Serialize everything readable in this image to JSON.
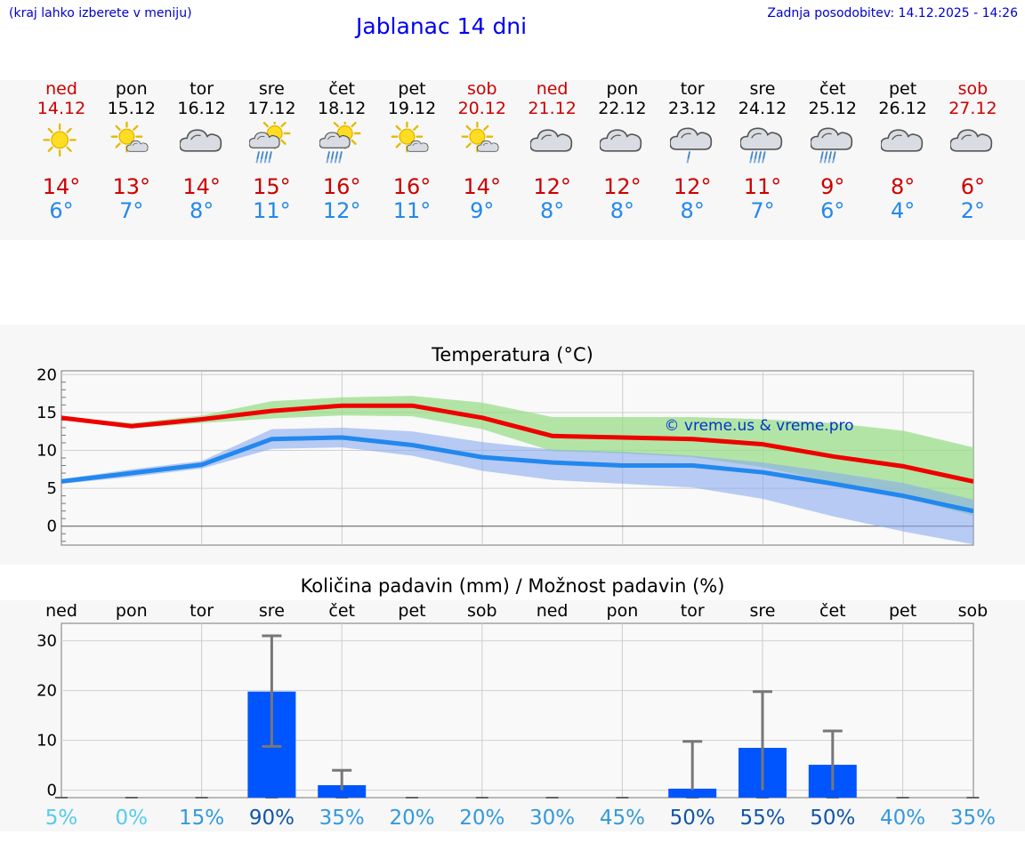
{
  "header": {
    "hint": "(kraj lahko izberete v meniju)",
    "title": "Jablanac 14 dni",
    "updated": "Zadnja posodobitev: 14.12.2025 - 14:26"
  },
  "colors": {
    "max_line": "#ee0000",
    "min_line": "#2288ee",
    "max_band": "#99dd88",
    "min_band": "#88aaee",
    "bar": "#0055ff",
    "weekend_text": "#cc0000",
    "min_text": "#2288ee"
  },
  "days": [
    {
      "name": "ned",
      "date": "14.12",
      "weekend": true,
      "icon": "sun-icon",
      "max": "14°",
      "min": "6°"
    },
    {
      "name": "pon",
      "date": "15.12",
      "weekend": false,
      "icon": "sun-cloud-icon",
      "max": "13°",
      "min": "7°"
    },
    {
      "name": "tor",
      "date": "16.12",
      "weekend": false,
      "icon": "cloud-icon",
      "max": "14°",
      "min": "8°"
    },
    {
      "name": "sre",
      "date": "17.12",
      "weekend": false,
      "icon": "sun-cloud-rain-icon",
      "max": "15°",
      "min": "11°"
    },
    {
      "name": "čet",
      "date": "18.12",
      "weekend": false,
      "icon": "sun-cloud-rain-icon",
      "max": "16°",
      "min": "12°"
    },
    {
      "name": "pet",
      "date": "19.12",
      "weekend": false,
      "icon": "sun-cloud-icon",
      "max": "16°",
      "min": "11°"
    },
    {
      "name": "sob",
      "date": "20.12",
      "weekend": true,
      "icon": "sun-cloud-icon",
      "max": "14°",
      "min": "9°"
    },
    {
      "name": "ned",
      "date": "21.12",
      "weekend": true,
      "icon": "cloud-icon",
      "max": "12°",
      "min": "8°"
    },
    {
      "name": "pon",
      "date": "22.12",
      "weekend": false,
      "icon": "cloud-icon",
      "max": "12°",
      "min": "8°"
    },
    {
      "name": "tor",
      "date": "23.12",
      "weekend": false,
      "icon": "cloud-light-rain-icon",
      "max": "12°",
      "min": "8°"
    },
    {
      "name": "sre",
      "date": "24.12",
      "weekend": false,
      "icon": "cloud-rain-icon",
      "max": "11°",
      "min": "7°"
    },
    {
      "name": "čet",
      "date": "25.12",
      "weekend": false,
      "icon": "cloud-rain-icon",
      "max": "9°",
      "min": "6°"
    },
    {
      "name": "pet",
      "date": "26.12",
      "weekend": false,
      "icon": "cloud-icon",
      "max": "8°",
      "min": "4°"
    },
    {
      "name": "sob",
      "date": "27.12",
      "weekend": true,
      "icon": "cloud-icon",
      "max": "6°",
      "min": "2°"
    }
  ],
  "chart_data": [
    {
      "type": "line",
      "title": "Temperatura (°C)",
      "watermark": "© vreme.us & vreme.pro",
      "ylim": [
        -2.5,
        20.5
      ],
      "yticks": [
        0,
        5,
        10,
        15,
        20
      ],
      "x": [
        "14.12",
        "15.12",
        "16.12",
        "17.12",
        "18.12",
        "19.12",
        "20.12",
        "21.12",
        "22.12",
        "23.12",
        "24.12",
        "25.12",
        "26.12",
        "27.12"
      ],
      "series": [
        {
          "name": "max",
          "values": [
            14.3,
            13.2,
            14.1,
            15.2,
            15.9,
            15.9,
            14.3,
            11.9,
            11.7,
            11.5,
            10.8,
            9.2,
            7.9,
            5.9
          ]
        },
        {
          "name": "min",
          "values": [
            5.9,
            7.0,
            8.1,
            11.5,
            11.7,
            10.7,
            9.1,
            8.4,
            8.0,
            8.0,
            7.1,
            5.6,
            4.0,
            2.0
          ]
        }
      ],
      "bands": [
        {
          "name": "max_range",
          "upper": [
            14.5,
            13.6,
            14.6,
            16.5,
            17.0,
            17.2,
            16.3,
            14.4,
            14.4,
            14.4,
            14.1,
            13.6,
            12.6,
            10.4
          ],
          "lower": [
            14.1,
            12.9,
            13.6,
            14.2,
            14.6,
            14.5,
            12.8,
            9.9,
            9.6,
            9.1,
            7.8,
            5.8,
            3.8,
            1.4
          ]
        },
        {
          "name": "min_range",
          "upper": [
            6.2,
            7.5,
            8.6,
            12.8,
            13.0,
            12.5,
            11.1,
            10.1,
            9.8,
            9.3,
            8.4,
            7.1,
            5.7,
            3.5
          ],
          "lower": [
            5.6,
            6.5,
            7.6,
            10.2,
            10.4,
            9.3,
            7.3,
            6.1,
            5.6,
            5.1,
            3.6,
            1.3,
            -0.7,
            -2.4
          ]
        }
      ]
    },
    {
      "type": "bar",
      "title": "Količina padavin (mm) / Možnost padavin (%)",
      "ylim": [
        -1.5,
        33.5
      ],
      "yticks": [
        0,
        10,
        20,
        30
      ],
      "categories": [
        "ned",
        "pon",
        "tor",
        "sre",
        "čet",
        "pet",
        "sob",
        "ned",
        "pon",
        "tor",
        "sre",
        "čet",
        "pet",
        "sob"
      ],
      "values": [
        0,
        0,
        0,
        19.8,
        1.0,
        0,
        0,
        0,
        0,
        0.3,
        8.5,
        5.1,
        0,
        0
      ],
      "error_high": [
        0,
        0,
        0,
        31.0,
        4.0,
        0,
        0,
        0,
        0,
        9.8,
        19.8,
        11.9,
        0,
        0
      ],
      "error_low": [
        0,
        0,
        0,
        8.8,
        0,
        0,
        0,
        0,
        0,
        0,
        0,
        0,
        0,
        0
      ],
      "probabilities": [
        "5%",
        "0%",
        "15%",
        "90%",
        "35%",
        "20%",
        "20%",
        "30%",
        "45%",
        "50%",
        "55%",
        "50%",
        "40%",
        "35%"
      ],
      "probability_colors": [
        "#55ccee",
        "#55ccee",
        "#3399dd",
        "#1155aa",
        "#3399dd",
        "#3399dd",
        "#3399dd",
        "#3399dd",
        "#3399dd",
        "#1155aa",
        "#1155aa",
        "#1155aa",
        "#3399dd",
        "#3399dd"
      ]
    }
  ]
}
